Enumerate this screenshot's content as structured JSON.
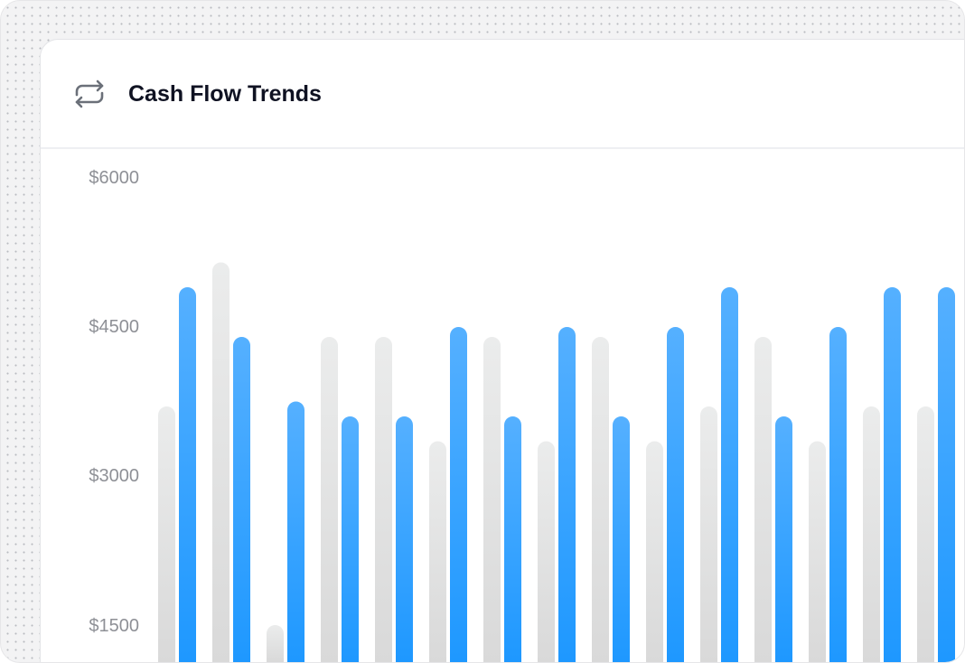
{
  "header": {
    "title": "Cash Flow Trends",
    "icon": "repeat-arrows-icon"
  },
  "chart_data": {
    "type": "bar",
    "title": "Cash Flow Trends",
    "y_tick_labels": [
      "$6000",
      "$4500",
      "$3000",
      "$1500"
    ],
    "y_ticks": [
      6000,
      4500,
      3000,
      1500
    ],
    "ylim": [
      1500,
      6000
    ],
    "grid": false,
    "colors": {
      "series1": "#e3e4e4",
      "series2": "#2a9cff"
    },
    "series": [
      {
        "values": [
          3700,
          5150,
          1500,
          4400,
          4400,
          3350,
          4400,
          3350,
          4400,
          3350,
          3700,
          4400,
          3350,
          3700,
          3700
        ]
      },
      {
        "values": [
          4900,
          4400,
          3750,
          3600,
          3600,
          4500,
          3600,
          4500,
          3600,
          4500,
          4900,
          3600,
          4500,
          4900,
          4900
        ]
      }
    ]
  }
}
